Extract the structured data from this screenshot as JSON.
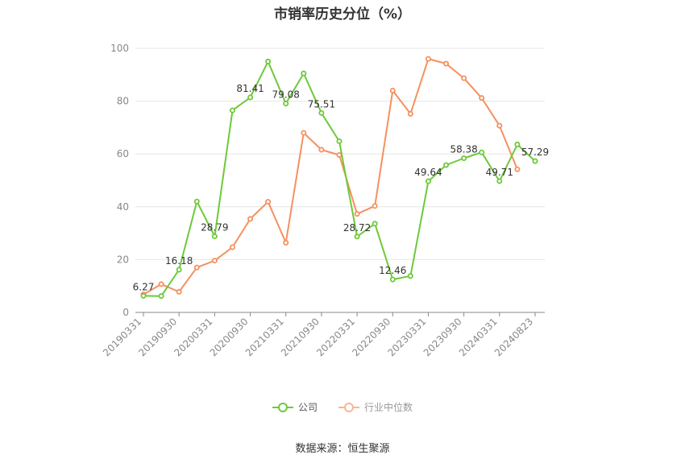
{
  "chart_data": {
    "type": "line",
    "title": "市销率历史分位（%）",
    "xlabel": "",
    "ylabel": "",
    "ylim": [
      0,
      100
    ],
    "yticks": [
      0,
      20,
      40,
      60,
      80,
      100
    ],
    "grid": true,
    "legend_position": "bottom-center",
    "x": [
      "20190331",
      "20190630",
      "20190930",
      "20191231",
      "20200331",
      "20200630",
      "20200930",
      "20201231",
      "20210331",
      "20210630",
      "20210930",
      "20211231",
      "20220331",
      "20220630",
      "20220930",
      "20221231",
      "20230331",
      "20230630",
      "20230930",
      "20231231",
      "20240331",
      "20240630",
      "20240823"
    ],
    "xtick_labels": [
      "20190331",
      "20190930",
      "20200331",
      "20200930",
      "20210331",
      "20210930",
      "20220331",
      "20220930",
      "20230331",
      "20230930",
      "20240331",
      "20240823"
    ],
    "series": [
      {
        "name": "公司",
        "color": "#6dc93a",
        "values": [
          6.27,
          6.2,
          16.18,
          42.0,
          28.79,
          76.5,
          81.41,
          95.0,
          79.08,
          90.5,
          75.51,
          64.8,
          28.72,
          33.6,
          12.46,
          13.8,
          49.64,
          55.8,
          58.38,
          60.6,
          49.71,
          63.6,
          57.29
        ],
        "labels": {
          "0": "6.27",
          "2": "16.18",
          "4": "28.79",
          "6": "81.41",
          "8": "79.08",
          "10": "75.51",
          "12": "28.72",
          "14": "12.46",
          "16": "49.64",
          "18": "58.38",
          "20": "49.71",
          "22": "57.29"
        }
      },
      {
        "name": "行业中位数",
        "color": "#f5905f",
        "values": [
          6.8,
          10.7,
          7.8,
          17.0,
          19.6,
          24.7,
          35.4,
          41.9,
          26.4,
          68.0,
          61.6,
          59.6,
          37.3,
          40.3,
          84.0,
          75.2,
          96.0,
          94.2,
          88.7,
          81.2,
          70.7,
          54.2,
          null
        ]
      }
    ]
  },
  "source_text": "数据来源：恒生聚源"
}
